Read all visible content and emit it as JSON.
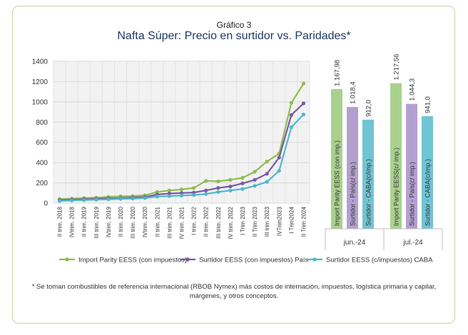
{
  "figure_label": "Gráfico 3",
  "title": "Nafta Súper: Precio en surtidor vs. Paridades*",
  "footnote": "* Se toman combustibles de referencia internacional (RBOB Nymex) más costos de internación, impuestos, logística primaria y capilar, márgenes, y otros conceptos.",
  "colors": {
    "series1": "#8fbc50",
    "series2": "#7a5aa0",
    "series3": "#4fb8cc",
    "bar1": "#a9d18e",
    "bar2": "#b4a0d0",
    "bar3": "#70c4d4",
    "frame": "#c8d4a0"
  },
  "chart_data": [
    {
      "type": "line",
      "ylim": [
        0,
        1400
      ],
      "yticks": [
        0,
        200,
        400,
        600,
        800,
        1000,
        1200,
        1400
      ],
      "categories": [
        "II trim. 2018",
        "IVtrim. 2018",
        "II trim. 2019",
        "III trim. 2019",
        "IVtrim. 2019",
        "II trim. 2020",
        "III trim. 2020",
        "IVtrim. 2020",
        "II trim. 2021",
        "III trim. 2021",
        "IV trim. 2021",
        "I trim. 2022",
        "II trim. 2022",
        "III trim. 2022",
        "IV trim. 2022",
        "I Trim 2023",
        "II Trim 2023",
        "III trim 2023",
        "IVTrim2023",
        "I Trim2024",
        "II Trim 2024"
      ],
      "series": [
        {
          "name": "Import Parity EESS (con impuestos)",
          "values": [
            40,
            45,
            50,
            55,
            62,
            68,
            70,
            78,
            110,
            125,
            135,
            150,
            220,
            215,
            230,
            250,
            310,
            410,
            490,
            990,
            1180
          ]
        },
        {
          "name": "Surtidor EESS (con impuestos) País",
          "values": [
            30,
            34,
            38,
            42,
            47,
            50,
            55,
            60,
            85,
            95,
            100,
            105,
            125,
            150,
            165,
            195,
            230,
            290,
            450,
            870,
            985
          ]
        },
        {
          "name": "Surtidor EESS (c/impuestos) CABA",
          "values": [
            22,
            26,
            30,
            34,
            38,
            42,
            45,
            50,
            65,
            70,
            75,
            80,
            90,
            110,
            125,
            140,
            170,
            210,
            320,
            750,
            875
          ]
        }
      ]
    },
    {
      "type": "bar",
      "groups": [
        {
          "label": "jun.-24",
          "bars": [
            {
              "name": "Import Parity EESS (con imp.)",
              "value": 1167.98,
              "value_label": "1.167,98"
            },
            {
              "name": "Surtidor - País(c/ imp.)",
              "value": 1018.4,
              "value_label": "1.018,4"
            },
            {
              "name": "Surtidor - CABA(c/imp.)",
              "value": 912.0,
              "value_label": "912,0"
            }
          ]
        },
        {
          "label": "jul.-24",
          "bars": [
            {
              "name": "Import Parity EESS(c/ imp.)",
              "value": 1217.56,
              "value_label": "1.217,56"
            },
            {
              "name": "Surtidor - País(c/ imp.)",
              "value": 1044.3,
              "value_label": "1.044,3"
            },
            {
              "name": "Surtidor - CABA(c/imp.)",
              "value": 941.0,
              "value_label": "941,0"
            }
          ]
        }
      ]
    }
  ]
}
